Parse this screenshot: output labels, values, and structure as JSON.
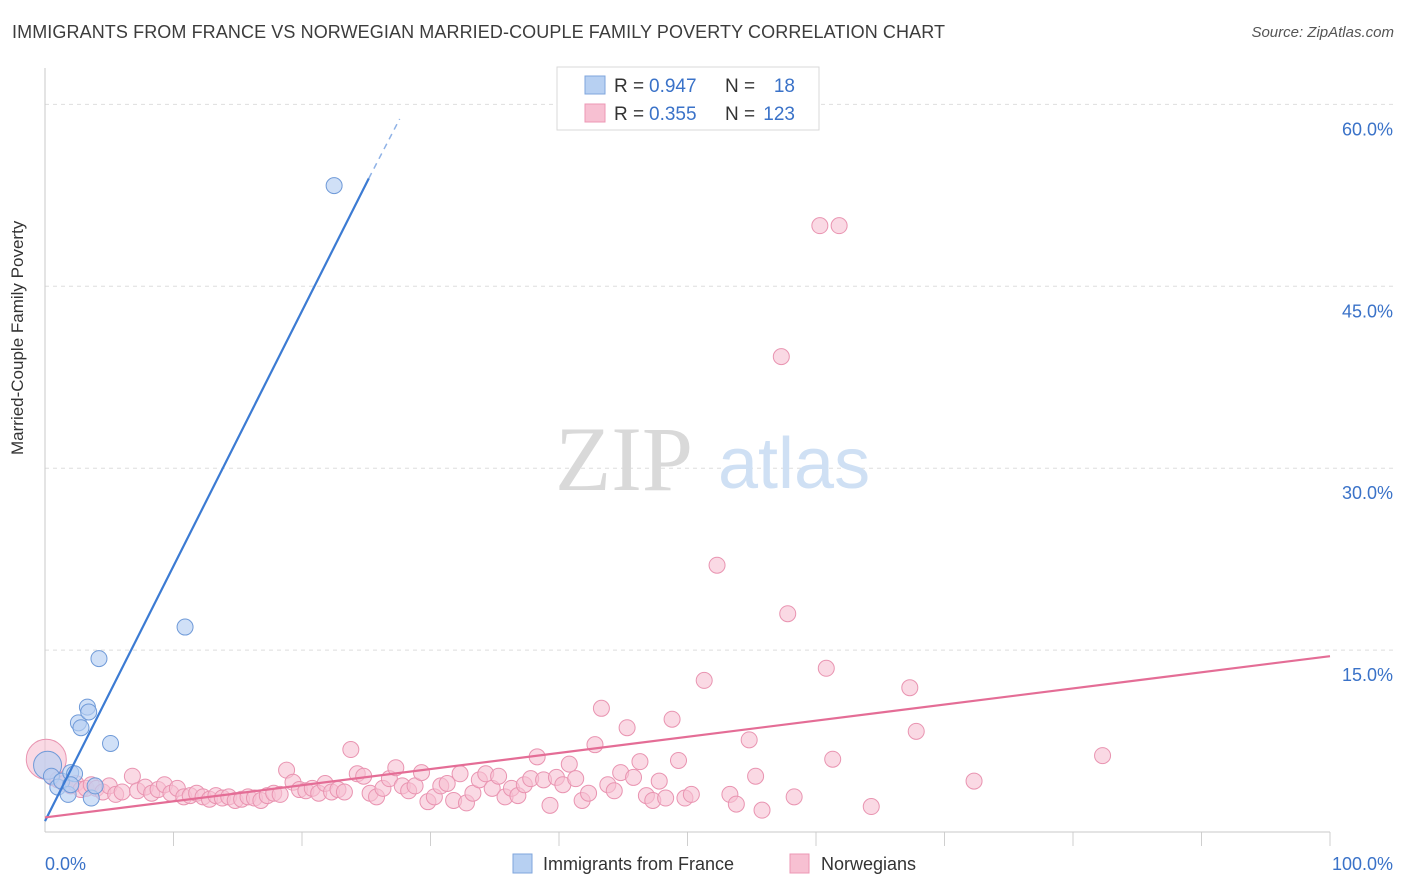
{
  "title": "IMMIGRANTS FROM FRANCE VS NORWEGIAN MARRIED-COUPLE FAMILY POVERTY CORRELATION CHART",
  "source": "Source: ZipAtlas.com",
  "watermark": {
    "zip": "ZIP",
    "atlas": "atlas"
  },
  "legend_top": {
    "series1": {
      "r_label": "R =",
      "r_value": "0.947",
      "n_label": "N =",
      "n_value": "18"
    },
    "series2": {
      "r_label": "R =",
      "r_value": "0.355",
      "n_label": "N =",
      "n_value": "123"
    }
  },
  "chart_data": {
    "type": "scatter",
    "title": "IMMIGRANTS FROM FRANCE VS NORWEGIAN MARRIED-COUPLE FAMILY POVERTY CORRELATION CHART",
    "xlabel": "",
    "ylabel": "Married-Couple Family Poverty",
    "xlim": [
      0,
      100
    ],
    "ylim": [
      0,
      63
    ],
    "x_tick_labels": [
      "0.0%",
      "100.0%"
    ],
    "y_ticks": [
      15,
      30,
      45,
      60
    ],
    "y_tick_labels": [
      "15.0%",
      "30.0%",
      "45.0%",
      "60.0%"
    ],
    "grid": true,
    "colors": {
      "france": "#5b8fd6",
      "france_fill": "#b7d0f2",
      "norwegian": "#e66f97",
      "norwegian_fill": "#f7c0d2",
      "accent_text": "#3a72c8"
    },
    "series": [
      {
        "name": "Immigrants from France",
        "trend": {
          "x0": 0,
          "y0": 0.9,
          "x1": 25.2,
          "y1": 53.9,
          "dash_x1": 27.6,
          "dash_y1": 58.8
        },
        "points": [
          [
            0.2,
            5.5
          ],
          [
            0.5,
            4.6
          ],
          [
            1.0,
            3.7
          ],
          [
            1.3,
            4.2
          ],
          [
            1.8,
            3.1
          ],
          [
            2.0,
            4.9
          ],
          [
            2.3,
            4.8
          ],
          [
            2.6,
            9.0
          ],
          [
            2.8,
            8.6
          ],
          [
            3.3,
            10.3
          ],
          [
            3.4,
            9.9
          ],
          [
            3.6,
            2.8
          ],
          [
            3.9,
            3.8
          ],
          [
            4.2,
            14.3
          ],
          [
            5.1,
            7.3
          ],
          [
            10.9,
            16.9
          ],
          [
            22.5,
            53.3
          ],
          [
            2.0,
            3.9
          ]
        ]
      },
      {
        "name": "Norwegians",
        "trend": {
          "x0": 0,
          "y0": 1.2,
          "x1": 100,
          "y1": 14.5
        },
        "points": [
          [
            0.1,
            6.0
          ],
          [
            0.6,
            4.5
          ],
          [
            1.0,
            4.3
          ],
          [
            1.5,
            4.0
          ],
          [
            2.0,
            3.8
          ],
          [
            2.4,
            4.0
          ],
          [
            2.8,
            3.5
          ],
          [
            3.2,
            3.6
          ],
          [
            3.6,
            3.9
          ],
          [
            4.0,
            3.6
          ],
          [
            4.5,
            3.3
          ],
          [
            5.0,
            3.8
          ],
          [
            5.5,
            3.1
          ],
          [
            6.0,
            3.3
          ],
          [
            6.8,
            4.6
          ],
          [
            7.2,
            3.4
          ],
          [
            7.8,
            3.7
          ],
          [
            8.3,
            3.2
          ],
          [
            8.8,
            3.5
          ],
          [
            9.3,
            3.9
          ],
          [
            9.8,
            3.2
          ],
          [
            10.3,
            3.6
          ],
          [
            10.8,
            2.9
          ],
          [
            11.3,
            3.0
          ],
          [
            11.8,
            3.2
          ],
          [
            12.3,
            2.9
          ],
          [
            12.8,
            2.7
          ],
          [
            13.3,
            3.0
          ],
          [
            13.8,
            2.8
          ],
          [
            14.3,
            2.9
          ],
          [
            14.8,
            2.6
          ],
          [
            15.3,
            2.7
          ],
          [
            15.8,
            2.9
          ],
          [
            16.3,
            2.8
          ],
          [
            16.8,
            2.6
          ],
          [
            17.3,
            3.0
          ],
          [
            17.8,
            3.2
          ],
          [
            18.3,
            3.1
          ],
          [
            18.8,
            5.1
          ],
          [
            19.3,
            4.1
          ],
          [
            19.8,
            3.5
          ],
          [
            20.3,
            3.4
          ],
          [
            20.8,
            3.6
          ],
          [
            21.3,
            3.2
          ],
          [
            21.8,
            4.0
          ],
          [
            22.3,
            3.3
          ],
          [
            22.8,
            3.5
          ],
          [
            23.3,
            3.3
          ],
          [
            23.8,
            6.8
          ],
          [
            24.3,
            4.8
          ],
          [
            24.8,
            4.6
          ],
          [
            25.3,
            3.2
          ],
          [
            25.8,
            2.9
          ],
          [
            26.3,
            3.6
          ],
          [
            26.8,
            4.4
          ],
          [
            27.3,
            5.3
          ],
          [
            27.8,
            3.8
          ],
          [
            28.3,
            3.4
          ],
          [
            28.8,
            3.8
          ],
          [
            29.3,
            4.9
          ],
          [
            29.8,
            2.5
          ],
          [
            30.3,
            2.9
          ],
          [
            30.8,
            3.8
          ],
          [
            31.3,
            4.0
          ],
          [
            31.8,
            2.6
          ],
          [
            32.3,
            4.8
          ],
          [
            32.8,
            2.4
          ],
          [
            33.3,
            3.2
          ],
          [
            33.8,
            4.3
          ],
          [
            34.3,
            4.8
          ],
          [
            34.8,
            3.6
          ],
          [
            35.3,
            4.6
          ],
          [
            35.8,
            2.9
          ],
          [
            36.3,
            3.6
          ],
          [
            36.8,
            3.0
          ],
          [
            37.3,
            3.9
          ],
          [
            37.8,
            4.4
          ],
          [
            38.3,
            6.2
          ],
          [
            38.8,
            4.3
          ],
          [
            39.3,
            2.2
          ],
          [
            39.8,
            4.5
          ],
          [
            40.3,
            3.9
          ],
          [
            40.8,
            5.6
          ],
          [
            41.3,
            4.4
          ],
          [
            41.8,
            2.6
          ],
          [
            42.3,
            3.2
          ],
          [
            42.8,
            7.2
          ],
          [
            43.3,
            10.2
          ],
          [
            43.8,
            3.9
          ],
          [
            44.3,
            3.4
          ],
          [
            44.8,
            4.9
          ],
          [
            45.3,
            8.6
          ],
          [
            45.8,
            4.5
          ],
          [
            46.3,
            5.8
          ],
          [
            46.8,
            3.0
          ],
          [
            47.3,
            2.6
          ],
          [
            47.8,
            4.2
          ],
          [
            48.3,
            2.8
          ],
          [
            48.8,
            9.3
          ],
          [
            49.3,
            5.9
          ],
          [
            49.8,
            2.8
          ],
          [
            50.3,
            3.1
          ],
          [
            51.3,
            12.5
          ],
          [
            52.3,
            22.0
          ],
          [
            53.3,
            3.1
          ],
          [
            53.8,
            2.3
          ],
          [
            54.8,
            7.6
          ],
          [
            55.3,
            4.6
          ],
          [
            55.8,
            1.8
          ],
          [
            57.3,
            39.2
          ],
          [
            57.8,
            18.0
          ],
          [
            58.3,
            2.9
          ],
          [
            60.3,
            50.0
          ],
          [
            60.8,
            13.5
          ],
          [
            61.3,
            6.0
          ],
          [
            61.8,
            50.0
          ],
          [
            64.3,
            2.1
          ],
          [
            67.3,
            11.9
          ],
          [
            67.8,
            8.3
          ],
          [
            72.3,
            4.2
          ],
          [
            82.3,
            6.3
          ]
        ]
      }
    ]
  },
  "legend_bottom": {
    "item1": "Immigrants from France",
    "item2": "Norwegians"
  }
}
